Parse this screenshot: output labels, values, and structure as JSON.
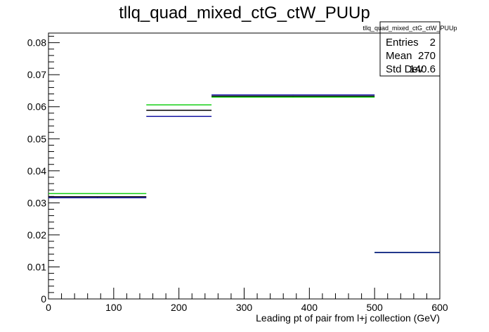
{
  "chart_data": {
    "type": "step",
    "title": "tllq_quad_mixed_ctG_ctW_PUUp",
    "xlabel": "Leading pt of pair from l+j collection (GeV)",
    "ylabel": "",
    "xlim": [
      0,
      600
    ],
    "ylim": [
      0,
      0.083
    ],
    "x_ticks": [
      0,
      100,
      200,
      300,
      400,
      500,
      600
    ],
    "x_tick_labels": [
      "0",
      "100",
      "200",
      "300",
      "400",
      "500",
      "600"
    ],
    "y_ticks": [
      0,
      0.01,
      0.02,
      0.03,
      0.04,
      0.05,
      0.06,
      0.07,
      0.08
    ],
    "y_tick_labels": [
      "0",
      "0.01",
      "0.02",
      "0.03",
      "0.04",
      "0.05",
      "0.06",
      "0.07",
      "0.08"
    ],
    "bin_edges": [
      0,
      150,
      250,
      500,
      600
    ],
    "series": [
      {
        "color": "#000000",
        "values": [
          0.0319,
          0.0589,
          0.0633,
          0.0145
        ]
      },
      {
        "color": "#00cc00",
        "values": [
          0.0329,
          0.0606,
          0.063,
          0.0145
        ]
      },
      {
        "color": "#000099",
        "values": [
          0.0316,
          0.057,
          0.0637,
          0.0145
        ]
      }
    ],
    "stats_box": {
      "title": "tllq_quad_mixed_ctG_ctW_PUUp",
      "rows": [
        {
          "label": "Entries",
          "value": "2"
        },
        {
          "label": "Mean",
          "value": "270"
        },
        {
          "label": "Std Dev",
          "value": "140.6"
        }
      ]
    },
    "grid": false,
    "legend": "top-right"
  }
}
